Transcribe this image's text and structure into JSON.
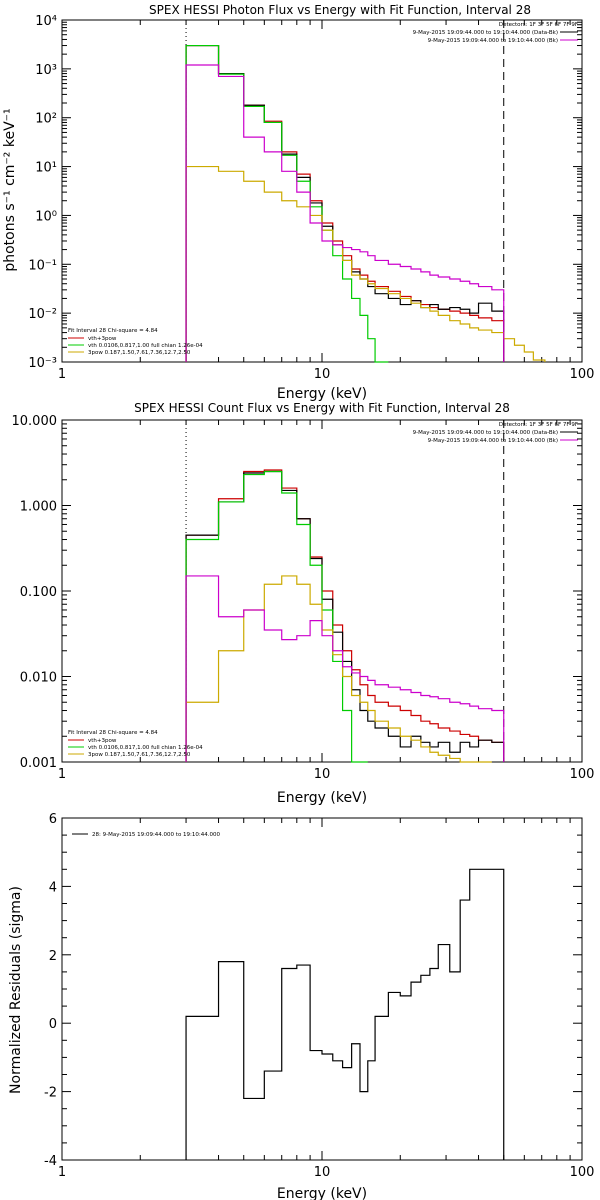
{
  "chart_data": [
    {
      "type": "line",
      "title": "SPEX HESSI Photon Flux vs Energy with Fit Function, Interval 28",
      "xlabel": "Energy (keV)",
      "ylabel": "photons s⁻¹ cm⁻² keV⁻¹",
      "xscale": "log",
      "yscale": "log",
      "xlim": [
        1,
        100
      ],
      "ylim": [
        0.001,
        10000
      ],
      "x_ticks": [
        "1",
        "10",
        "100"
      ],
      "y_ticks": [
        "10⁻³",
        "10⁻²",
        "10⁻¹",
        "10⁰",
        "10¹",
        "10²",
        "10³",
        "10⁴"
      ],
      "vlines": [
        {
          "x": 3,
          "style": "dotted"
        },
        {
          "x": 50,
          "style": "dashed"
        }
      ],
      "legend_top_right": {
        "detectors": "Detectors: 1F 3F 5F 6F 7F 9F",
        "entries": [
          {
            "label": "9-May-2015 19:09:44.000 to 19:10:44.000 (Data-Bk)",
            "color": "#000000"
          },
          {
            "label": "9-May-2015 19:09:44.000 to 19:10:44.000 (Bk)",
            "color": "#cc00cc"
          }
        ]
      },
      "legend_bottom_left": {
        "header": "Fit Interval 28   Chi-square = 4.84",
        "entries": [
          {
            "label": "vth+3pow",
            "color": "#cc0000"
          },
          {
            "label": "vth 0.0106,0.817,1.00  full chian 1.26e-04",
            "color": "#00cc00"
          },
          {
            "label": "3pow 0.187,1.50,7.61,7.36,12.7,2.50",
            "color": "#ccaa00"
          }
        ]
      },
      "edges": [
        3,
        4,
        5,
        6,
        7,
        8,
        9,
        10,
        11,
        12,
        13,
        14,
        15,
        16,
        18,
        20,
        22,
        24,
        26,
        28,
        31,
        34,
        37,
        40,
        45,
        50,
        55,
        60,
        65,
        72
      ],
      "series": [
        {
          "color": "#cc0000",
          "values": [
            3000,
            800,
            180,
            85,
            20,
            7,
            2,
            0.7,
            0.3,
            0.15,
            0.08,
            0.06,
            0.045,
            0.035,
            0.028,
            0.022,
            0.018,
            0.015,
            0.013,
            0.012,
            0.011,
            0.01,
            0.009,
            0.008,
            0.007
          ]
        },
        {
          "color": "#000000",
          "values": [
            3000,
            800,
            180,
            80,
            18,
            6,
            1.8,
            0.6,
            0.25,
            0.12,
            0.07,
            0.05,
            0.035,
            0.025,
            0.02,
            0.015,
            0.018,
            0.013,
            0.015,
            0.012,
            0.013,
            0.012,
            0.01,
            0.016,
            0.011
          ]
        },
        {
          "color": "#00cc00",
          "values": [
            3000,
            780,
            170,
            80,
            17,
            5,
            1.5,
            0.5,
            0.15,
            0.05,
            0.02,
            0.009,
            0.003,
            0.0009
          ]
        },
        {
          "color": "#ccaa00",
          "values": [
            10,
            8,
            5,
            3,
            2,
            1.5,
            1,
            0.5,
            0.25,
            0.12,
            0.06,
            0.05,
            0.04,
            0.032,
            0.025,
            0.02,
            0.016,
            0.013,
            0.011,
            0.009,
            0.007,
            0.006,
            0.005,
            0.0045,
            0.004,
            0.003,
            0.0022,
            0.0016,
            0.0011
          ]
        },
        {
          "color": "#cc00cc",
          "values": [
            1200,
            700,
            40,
            20,
            8,
            3,
            0.7,
            0.3,
            0.25,
            0.22,
            0.2,
            0.18,
            0.15,
            0.12,
            0.1,
            0.09,
            0.08,
            0.07,
            0.06,
            0.055,
            0.05,
            0.045,
            0.04,
            0.035,
            0.03
          ]
        }
      ]
    },
    {
      "type": "line",
      "title": "SPEX HESSI Count Flux vs Energy with Fit Function, Interval 28",
      "xlabel": "Energy (keV)",
      "ylabel": "",
      "xscale": "log",
      "yscale": "log",
      "xlim": [
        1,
        100
      ],
      "ylim": [
        0.001,
        10
      ],
      "x_ticks": [
        "1",
        "10",
        "100"
      ],
      "y_ticks": [
        "0.001",
        "0.010",
        "0.100",
        "1.000",
        "10.000"
      ],
      "vlines": [
        {
          "x": 3,
          "style": "dotted"
        },
        {
          "x": 50,
          "style": "dashed"
        }
      ],
      "legend_top_right": {
        "detectors": "Detectors: 1F 3F 5F 6F 7F 9F",
        "entries": [
          {
            "label": "9-May-2015 19:09:44.000 to 19:10:44.000 (Data-Bk)",
            "color": "#000000"
          },
          {
            "label": "9-May-2015 19:09:44.000 to 19:10:44.000 (Bk)",
            "color": "#cc00cc"
          }
        ]
      },
      "legend_bottom_left": {
        "header": "Fit Interval 28   Chi-square = 4.84",
        "entries": [
          {
            "label": "vth+3pow",
            "color": "#cc0000"
          },
          {
            "label": "vth 0.0106,0.817,1.00  full chian 1.26e-04",
            "color": "#00cc00"
          },
          {
            "label": "3pow 0.187,1.50,7.61,7.36,12.7,2.50",
            "color": "#ccaa00"
          }
        ]
      },
      "edges": [
        3,
        4,
        5,
        6,
        7,
        8,
        9,
        10,
        11,
        12,
        13,
        14,
        15,
        16,
        18,
        20,
        22,
        24,
        26,
        28,
        31,
        34,
        37,
        40,
        45,
        50,
        55,
        60,
        65,
        72
      ],
      "series": [
        {
          "color": "#cc0000",
          "values": [
            0.45,
            1.2,
            2.5,
            2.6,
            1.6,
            0.7,
            0.25,
            0.1,
            0.04,
            0.02,
            0.012,
            0.008,
            0.006,
            0.005,
            0.0045,
            0.004,
            0.0035,
            0.003,
            0.0028,
            0.0025,
            0.0023,
            0.0021,
            0.002,
            0.0018,
            0.0017
          ]
        },
        {
          "color": "#000000",
          "values": [
            0.45,
            1.1,
            2.4,
            2.5,
            1.5,
            0.7,
            0.24,
            0.08,
            0.033,
            0.015,
            0.007,
            0.004,
            0.003,
            0.0025,
            0.002,
            0.0015,
            0.002,
            0.0017,
            0.0015,
            0.0017,
            0.0013,
            0.0017,
            0.0015,
            0.0018,
            0.0017
          ]
        },
        {
          "color": "#00cc00",
          "values": [
            0.4,
            1.1,
            2.3,
            2.5,
            1.4,
            0.6,
            0.2,
            0.06,
            0.015,
            0.004,
            0.001,
            0.0005
          ]
        },
        {
          "color": "#ccaa00",
          "values": [
            0.005,
            0.02,
            0.06,
            0.12,
            0.15,
            0.12,
            0.07,
            0.035,
            0.018,
            0.01,
            0.006,
            0.005,
            0.004,
            0.003,
            0.0025,
            0.002,
            0.0018,
            0.0015,
            0.0013,
            0.0012,
            0.0011,
            0.001,
            0.0009,
            0.0008
          ]
        },
        {
          "color": "#cc00cc",
          "values": [
            0.15,
            0.05,
            0.06,
            0.035,
            0.027,
            0.03,
            0.045,
            0.03,
            0.02,
            0.013,
            0.011,
            0.01,
            0.009,
            0.008,
            0.0075,
            0.007,
            0.0065,
            0.006,
            0.0058,
            0.0055,
            0.005,
            0.0048,
            0.0045,
            0.0042,
            0.004
          ]
        }
      ]
    },
    {
      "type": "line",
      "title": "",
      "xlabel": "Energy (keV)",
      "ylabel": "Normalized Residuals (sigma)",
      "xscale": "log",
      "yscale": "linear",
      "xlim": [
        1,
        100
      ],
      "ylim": [
        -4,
        6
      ],
      "x_ticks": [
        "1",
        "10",
        "100"
      ],
      "y_ticks": [
        "-4",
        "-2",
        "0",
        "2",
        "4",
        "6"
      ],
      "legend": [
        {
          "label": "28:  9-May-2015 19:09:44.000 to 19:10:44.000",
          "color": "#000000"
        }
      ],
      "edges": [
        3,
        4,
        5,
        6,
        7,
        8,
        9,
        10,
        11,
        12,
        13,
        14,
        15,
        16,
        18,
        20,
        22,
        24,
        26,
        28,
        31,
        34,
        37,
        40,
        45,
        50
      ],
      "series": [
        {
          "color": "#000000",
          "values": [
            0.2,
            1.8,
            -2.2,
            -1.4,
            1.6,
            1.7,
            -0.8,
            -0.9,
            -1.1,
            -1.3,
            -0.6,
            -2.0,
            -1.1,
            0.2,
            0.9,
            0.8,
            1.2,
            1.4,
            1.6,
            2.3,
            1.5,
            3.6,
            4.5,
            4.5,
            4.5
          ]
        }
      ]
    }
  ]
}
